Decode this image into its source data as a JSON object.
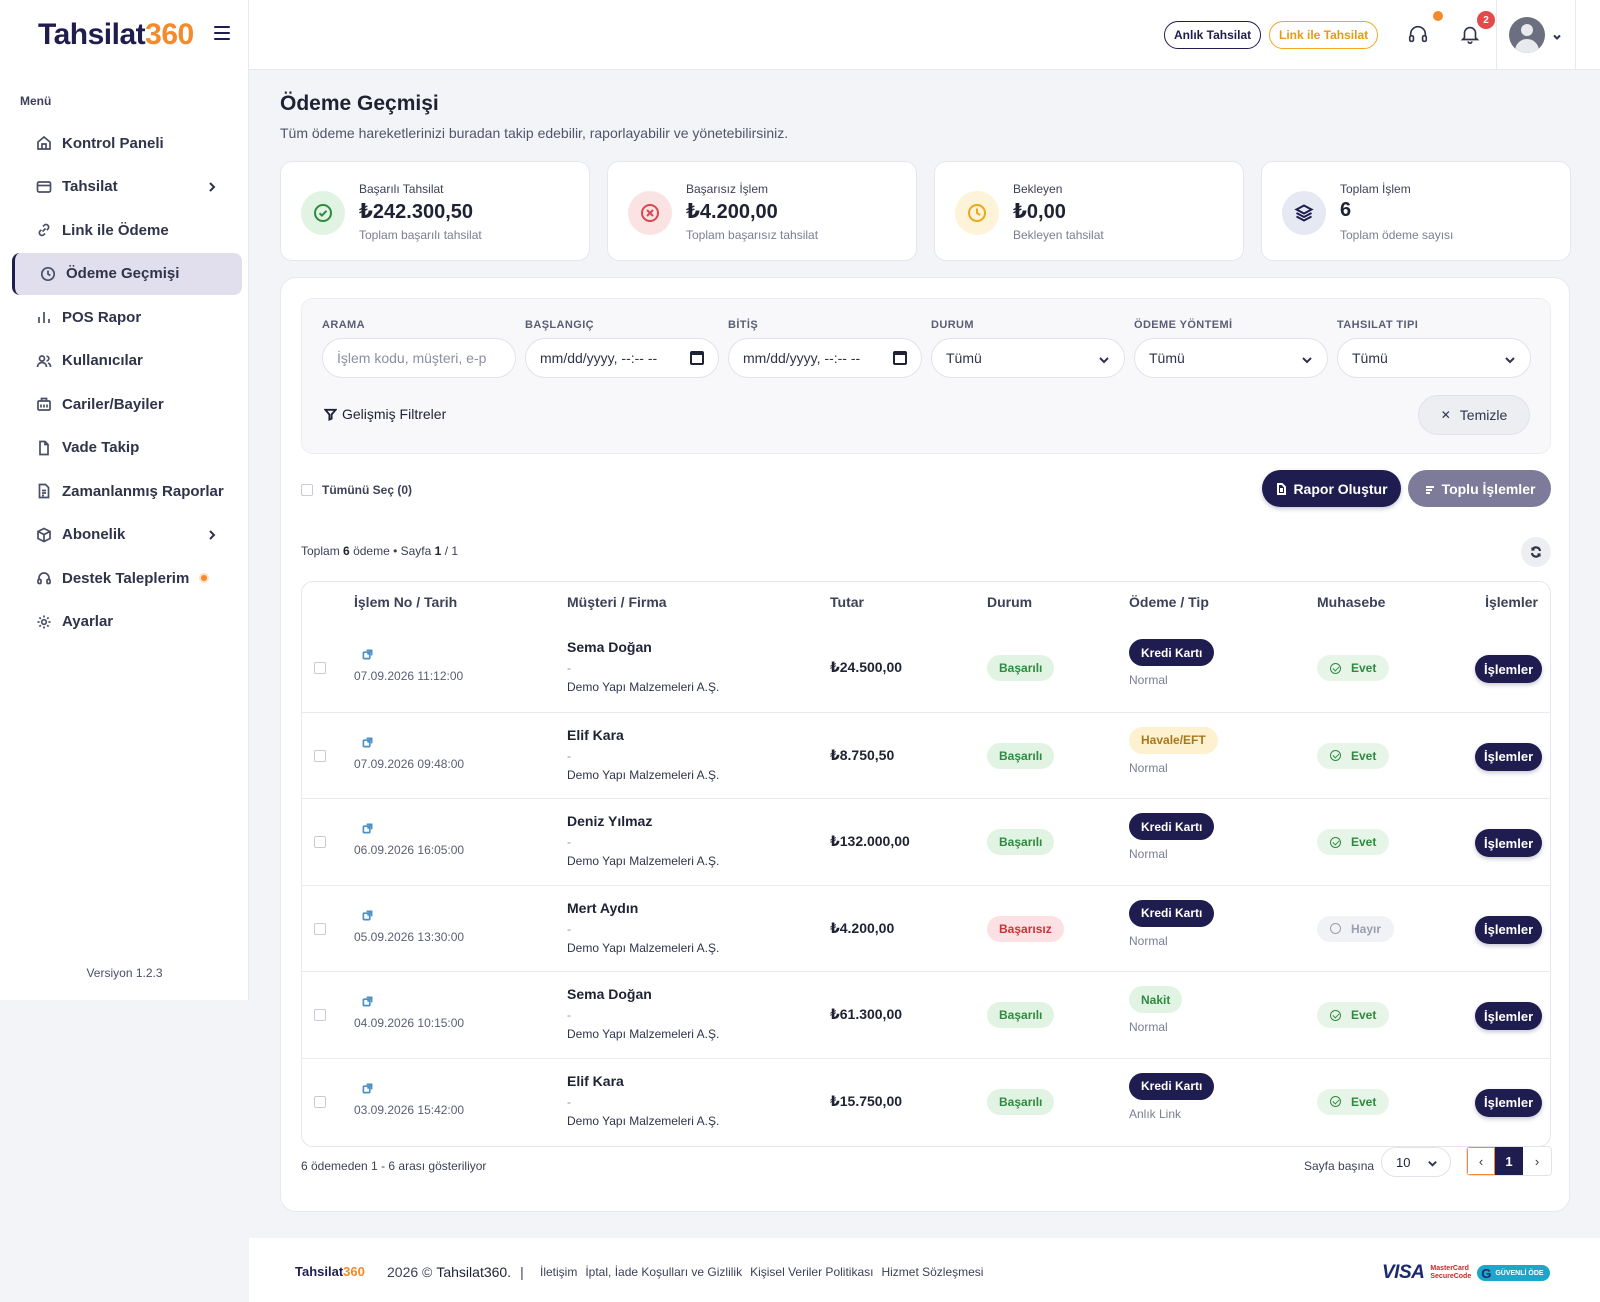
{
  "brand": {
    "name_part1": "Tahsilat",
    "name_part2": "360"
  },
  "sidebar": {
    "menu_title": "Menü",
    "items": [
      {
        "label": "Kontrol Paneli",
        "icon": "home-icon"
      },
      {
        "label": "Tahsilat",
        "icon": "card-icon",
        "has_submenu": true
      },
      {
        "label": "Link ile Ödeme",
        "icon": "link-icon"
      },
      {
        "label": "Ödeme Geçmişi",
        "icon": "clock-icon",
        "active": true
      },
      {
        "label": "POS Rapor",
        "icon": "bar-chart-icon"
      },
      {
        "label": "Kullanıcılar",
        "icon": "users-icon"
      },
      {
        "label": "Cariler/Bayiler",
        "icon": "building-icon"
      },
      {
        "label": "Vade Takip",
        "icon": "document-icon"
      },
      {
        "label": "Zamanlanmış Raporlar",
        "icon": "report-icon"
      },
      {
        "label": "Abonelik",
        "icon": "box-icon",
        "has_submenu": true
      },
      {
        "label": "Destek Taleplerim",
        "icon": "headset-icon",
        "notification_dot": true
      },
      {
        "label": "Ayarlar",
        "icon": "gear-icon"
      }
    ],
    "version": "Versiyon 1.2.3"
  },
  "topbar": {
    "anlik_label": "Anlık Tahsilat",
    "link_label": "Link ile Tahsilat",
    "notification_count": "2"
  },
  "page": {
    "title": "Ödeme Geçmişi",
    "subtitle": "Tüm ödeme hareketlerinizi buradan takip edebilir, raporlayabilir ve yönetebilirsiniz."
  },
  "stats": [
    {
      "label": "Başarılı Tahsilat",
      "value": "₺242.300,50",
      "desc": "Toplam başarılı tahsilat",
      "icon": "check-circle-icon",
      "color": "#2f8a3e",
      "bg": "#e1f4e4"
    },
    {
      "label": "Başarısız İşlem",
      "value": "₺4.200,00",
      "desc": "Toplam başarısız tahsilat",
      "icon": "x-circle-icon",
      "color": "#d9474f",
      "bg": "#fbe3e4"
    },
    {
      "label": "Bekleyen",
      "value": "₺0,00",
      "desc": "Bekleyen tahsilat",
      "icon": "clock-icon",
      "color": "#e9a91b",
      "bg": "#fdf3d8"
    },
    {
      "label": "Toplam İşlem",
      "value": "6",
      "desc": "Toplam ödeme sayısı",
      "icon": "layers-icon",
      "color": "#1f1d4f",
      "bg": "#e6e8f4"
    }
  ],
  "filters": {
    "search": {
      "label": "ARAMA",
      "placeholder": "İşlem kodu, müşteri, e-p"
    },
    "start": {
      "label": "BAŞLANGIÇ",
      "value": "mm/dd/yyyy, --:-- --"
    },
    "end": {
      "label": "BİTİŞ",
      "value": "mm/dd/yyyy, --:-- --"
    },
    "status": {
      "label": "DURUM",
      "value": "Tümü"
    },
    "method": {
      "label": "ÖDEME YÖNTEMİ",
      "value": "Tümü"
    },
    "type": {
      "label": "TAHSILAT TIPI",
      "value": "Tümü"
    },
    "advanced_label": "Gelişmiş Filtreler",
    "clear_label": "Temizle"
  },
  "actions": {
    "select_all": "Tümünü Seç (0)",
    "report_btn": "Rapor Oluştur",
    "bulk_btn": "Toplu İşlemler"
  },
  "summary": {
    "prefix": "Toplam",
    "count": "6",
    "mid": "ödeme • Sayfa",
    "page": "1",
    "total_pages": "/ 1"
  },
  "table": {
    "headers": [
      "İşlem No / Tarih",
      "Müşteri / Firma",
      "Tutar",
      "Durum",
      "Ödeme / Tip",
      "Muhasebe",
      "İşlemler"
    ],
    "rows": [
      {
        "date": "07.09.2026 11:12:00",
        "customer": "Sema Doğan",
        "dash": "-",
        "firm": "Demo Yapı Malzemeleri A.Ş.",
        "amount": "₺24.500,00",
        "status": "Başarılı",
        "status_kind": "ok",
        "payment": "Kredi Kartı",
        "payment_kind": "kredi",
        "type": "Normal",
        "accounting": "Evet",
        "accounting_kind": "yes",
        "action": "İşlemler"
      },
      {
        "date": "07.09.2026 09:48:00",
        "customer": "Elif Kara",
        "dash": "-",
        "firm": "Demo Yapı Malzemeleri A.Ş.",
        "amount": "₺8.750,50",
        "status": "Başarılı",
        "status_kind": "ok",
        "payment": "Havale/EFT",
        "payment_kind": "havale",
        "type": "Normal",
        "accounting": "Evet",
        "accounting_kind": "yes",
        "action": "İşlemler"
      },
      {
        "date": "06.09.2026 16:05:00",
        "customer": "Deniz Yılmaz",
        "dash": "-",
        "firm": "Demo Yapı Malzemeleri A.Ş.",
        "amount": "₺132.000,00",
        "status": "Başarılı",
        "status_kind": "ok",
        "payment": "Kredi Kartı",
        "payment_kind": "kredi",
        "type": "Normal",
        "accounting": "Evet",
        "accounting_kind": "yes",
        "action": "İşlemler"
      },
      {
        "date": "05.09.2026 13:30:00",
        "customer": "Mert Aydın",
        "dash": "-",
        "firm": "Demo Yapı Malzemeleri A.Ş.",
        "amount": "₺4.200,00",
        "status": "Başarısız",
        "status_kind": "fail",
        "payment": "Kredi Kartı",
        "payment_kind": "kredi",
        "type": "Normal",
        "accounting": "Hayır",
        "accounting_kind": "no",
        "action": "İşlemler"
      },
      {
        "date": "04.09.2026 10:15:00",
        "customer": "Sema Doğan",
        "dash": "-",
        "firm": "Demo Yapı Malzemeleri A.Ş.",
        "amount": "₺61.300,00",
        "status": "Başarılı",
        "status_kind": "ok",
        "payment": "Nakit",
        "payment_kind": "nakit",
        "type": "Normal",
        "accounting": "Evet",
        "accounting_kind": "yes",
        "action": "İşlemler"
      },
      {
        "date": "03.09.2026 15:42:00",
        "customer": "Elif Kara",
        "dash": "-",
        "firm": "Demo Yapı Malzemeleri A.Ş.",
        "amount": "₺15.750,00",
        "status": "Başarılı",
        "status_kind": "ok",
        "payment": "Kredi Kartı",
        "payment_kind": "kredi",
        "type": "Anlık Link",
        "accounting": "Evet",
        "accounting_kind": "yes",
        "action": "İşlemler"
      }
    ]
  },
  "pagination": {
    "info": "6 ödemeden 1 - 6 arası gösteriliyor",
    "per_page_label": "Sayfa başına",
    "per_page_value": "10",
    "current_page": "1",
    "prev": "‹",
    "next": "›"
  },
  "footer": {
    "year": "2026 ©",
    "brand": "Tahsilat360.",
    "separator": "|",
    "links": [
      "İletişim",
      "İptal, İade Koşulları ve Gizlilik",
      "Kişisel Veriler Politikası",
      "Hizmet Sözleşmesi"
    ],
    "pay_visa": "VISA",
    "pay_mc_1": "MasterCard",
    "pay_mc_2": "SecureCode",
    "pay_guv": "GÜVENLİ ÖDE"
  }
}
